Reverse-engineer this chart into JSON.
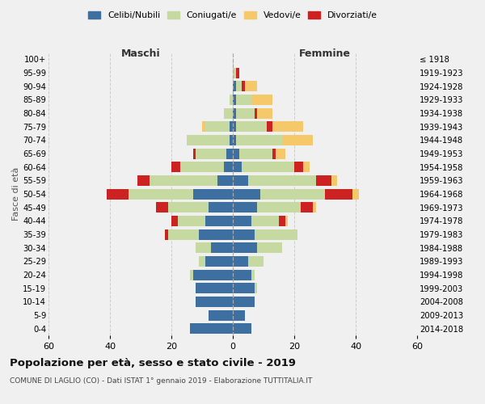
{
  "age_groups": [
    "0-4",
    "5-9",
    "10-14",
    "15-19",
    "20-24",
    "25-29",
    "30-34",
    "35-39",
    "40-44",
    "45-49",
    "50-54",
    "55-59",
    "60-64",
    "65-69",
    "70-74",
    "75-79",
    "80-84",
    "85-89",
    "90-94",
    "95-99",
    "100+"
  ],
  "birth_years": [
    "2014-2018",
    "2009-2013",
    "2004-2008",
    "1999-2003",
    "1994-1998",
    "1989-1993",
    "1984-1988",
    "1979-1983",
    "1974-1978",
    "1969-1973",
    "1964-1968",
    "1959-1963",
    "1954-1958",
    "1949-1953",
    "1944-1948",
    "1939-1943",
    "1934-1938",
    "1929-1933",
    "1924-1928",
    "1919-1923",
    "≤ 1918"
  ],
  "colors": {
    "celibi": "#3d6fa0",
    "coniugati": "#c5d9a0",
    "vedovi": "#f5c96a",
    "divorziati": "#cc2222"
  },
  "maschi": {
    "celibi": [
      14,
      8,
      12,
      12,
      13,
      9,
      7,
      11,
      9,
      8,
      13,
      5,
      3,
      2,
      1,
      1,
      0,
      0,
      0,
      0,
      0
    ],
    "coniugati": [
      0,
      0,
      0,
      0,
      1,
      2,
      5,
      10,
      9,
      13,
      21,
      22,
      14,
      10,
      14,
      8,
      3,
      1,
      0,
      0,
      0
    ],
    "vedovi": [
      0,
      0,
      0,
      0,
      0,
      0,
      0,
      0,
      0,
      0,
      0,
      0,
      0,
      0,
      0,
      1,
      0,
      0,
      0,
      0,
      0
    ],
    "divorziati": [
      0,
      0,
      0,
      0,
      0,
      0,
      0,
      1,
      2,
      4,
      7,
      4,
      3,
      1,
      0,
      0,
      0,
      0,
      0,
      0,
      0
    ]
  },
  "femmine": {
    "celibi": [
      6,
      4,
      7,
      7,
      6,
      5,
      8,
      7,
      6,
      8,
      9,
      5,
      3,
      2,
      1,
      1,
      1,
      1,
      1,
      0,
      0
    ],
    "coniugati": [
      0,
      0,
      0,
      1,
      1,
      5,
      8,
      14,
      9,
      14,
      21,
      22,
      17,
      11,
      15,
      10,
      6,
      5,
      2,
      1,
      0
    ],
    "vedovi": [
      0,
      0,
      0,
      0,
      0,
      0,
      0,
      0,
      1,
      1,
      2,
      2,
      2,
      3,
      10,
      10,
      5,
      7,
      4,
      0,
      0
    ],
    "divorziati": [
      0,
      0,
      0,
      0,
      0,
      0,
      0,
      0,
      2,
      4,
      9,
      5,
      3,
      1,
      0,
      2,
      1,
      0,
      1,
      1,
      0
    ]
  },
  "xlim": 60,
  "title": "Popolazione per età, sesso e stato civile - 2019",
  "subtitle": "COMUNE DI LAGLIO (CO) - Dati ISTAT 1° gennaio 2019 - Elaborazione TUTTITALIA.IT",
  "ylabel_left": "Fasce di età",
  "header_maschi": "Maschi",
  "header_femmine": "Femmine",
  "legend_labels": [
    "Celibi/Nubili",
    "Coniugati/e",
    "Vedovi/e",
    "Divorziati/e"
  ],
  "background_color": "#f0f0f0"
}
